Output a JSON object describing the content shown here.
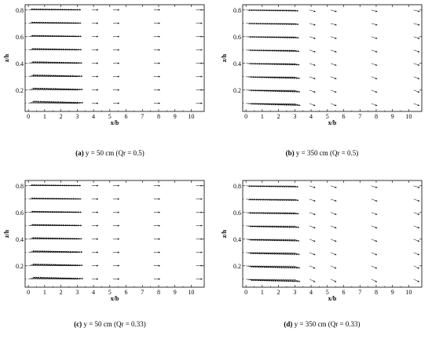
{
  "chart_data": [
    {
      "type": "vector-field",
      "caption_tag": "(a)",
      "caption": "y = 50 cm (Qr = 0.5)",
      "xlabel": "x/b",
      "ylabel": "z/h",
      "xlim": [
        -0.2,
        10.8
      ],
      "ylim": [
        0.04,
        0.84
      ],
      "xticks": [
        0,
        1,
        2,
        3,
        4,
        5,
        6,
        7,
        8,
        9,
        10
      ],
      "yticks": [
        0.2,
        0.4,
        0.6,
        0.8
      ],
      "x_stations": [
        0,
        0.4,
        0.8,
        1.2,
        1.6,
        2.0,
        2.4,
        2.8,
        3.9,
        5.2,
        7.7,
        10.3
      ],
      "z_levels": [
        0.1,
        0.2,
        0.3,
        0.4,
        0.5,
        0.6,
        0.7,
        0.8
      ],
      "vector_dir": [
        1.0,
        0.25
      ],
      "vector_dir_far": [
        1.0,
        0.02
      ]
    },
    {
      "type": "vector-field",
      "caption_tag": "(b)",
      "caption": "y = 350 cm (Qr = 0.5)",
      "xlabel": "x/b",
      "ylabel": "z/h",
      "xlim": [
        -0.2,
        10.8
      ],
      "ylim": [
        0.04,
        0.84
      ],
      "xticks": [
        0,
        1,
        2,
        3,
        4,
        5,
        6,
        7,
        8,
        9,
        10
      ],
      "yticks": [
        0.2,
        0.4,
        0.6,
        0.8
      ],
      "x_stations": [
        0,
        0.4,
        0.8,
        1.2,
        1.6,
        2.0,
        2.4,
        2.8,
        3.9,
        5.2,
        7.7,
        10.3
      ],
      "z_levels": [
        0.1,
        0.2,
        0.3,
        0.4,
        0.5,
        0.6,
        0.7,
        0.8
      ],
      "vector_dir": [
        1.0,
        -0.05
      ],
      "vector_dir_far": [
        1.0,
        -0.3
      ]
    },
    {
      "type": "vector-field",
      "caption_tag": "(c)",
      "caption": "y = 50 cm (Qr = 0.33)",
      "xlabel": "x/b",
      "ylabel": "z/h",
      "xlim": [
        -0.2,
        10.8
      ],
      "ylim": [
        0.04,
        0.84
      ],
      "xticks": [
        0,
        1,
        2,
        3,
        4,
        5,
        6,
        7,
        8,
        9,
        10
      ],
      "yticks": [
        0.2,
        0.4,
        0.6,
        0.8
      ],
      "x_stations": [
        0,
        0.4,
        0.8,
        1.2,
        1.6,
        2.0,
        2.4,
        2.8,
        3.9,
        5.2,
        7.7,
        10.3
      ],
      "z_levels": [
        0.1,
        0.2,
        0.3,
        0.4,
        0.5,
        0.6,
        0.7,
        0.8
      ],
      "vector_dir": [
        1.0,
        0.22
      ],
      "vector_dir_far": [
        1.0,
        0.02
      ]
    },
    {
      "type": "vector-field",
      "caption_tag": "(d)",
      "caption": "y = 350 cm (Qr = 0.33)",
      "xlabel": "x/b",
      "ylabel": "z/h",
      "xlim": [
        -0.2,
        10.8
      ],
      "ylim": [
        0.04,
        0.84
      ],
      "xticks": [
        0,
        1,
        2,
        3,
        4,
        5,
        6,
        7,
        8,
        9,
        10
      ],
      "yticks": [
        0.2,
        0.4,
        0.6,
        0.8
      ],
      "x_stations": [
        0,
        0.4,
        0.8,
        1.2,
        1.6,
        2.0,
        2.4,
        2.8,
        3.9,
        5.2,
        7.7,
        10.3
      ],
      "z_levels": [
        0.1,
        0.2,
        0.3,
        0.4,
        0.5,
        0.6,
        0.7,
        0.8
      ],
      "vector_dir": [
        1.0,
        -0.12
      ],
      "vector_dir_far": [
        1.0,
        -0.35
      ]
    }
  ]
}
